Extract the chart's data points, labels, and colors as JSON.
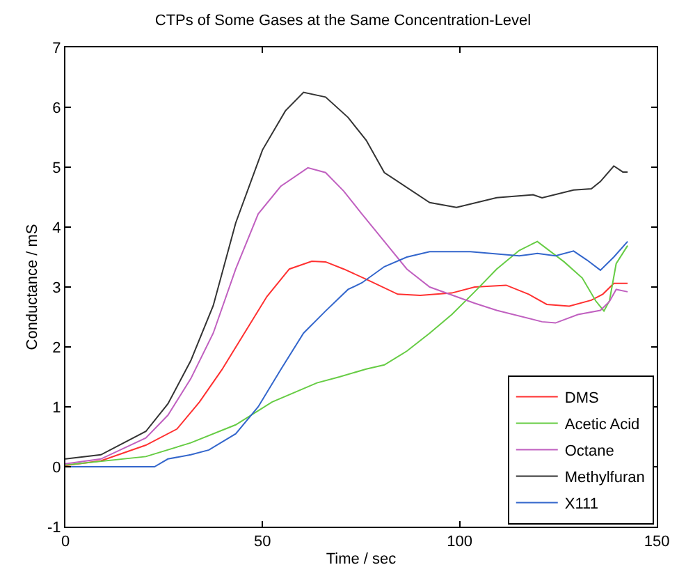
{
  "chart_data": {
    "type": "line",
    "title": "CTPs of Some Gases at the Same Concentration-Level",
    "xlabel": "Time / sec",
    "ylabel": "Conductance / mS",
    "xlim": [
      0,
      150
    ],
    "xticks": [
      0,
      50,
      100,
      150
    ],
    "ylim": [
      -1,
      7
    ],
    "yticks": [
      -1,
      0,
      1,
      2,
      3,
      4,
      5,
      6,
      7
    ],
    "legend": "bottom right",
    "series": [
      {
        "name": "DMS",
        "color": "#ff3030",
        "x": [
          0,
          9,
          20.4,
          28.3,
          34,
          39.7,
          45.4,
          51.1,
          56.8,
          62.5,
          66,
          70.6,
          76.3,
          84.3,
          90,
          98,
          103.8,
          111.8,
          117.5,
          122.1,
          127.8,
          133.4,
          136.3,
          139.1,
          142.6
        ],
        "values": [
          0.02,
          0.1,
          0.36,
          0.63,
          1.08,
          1.62,
          2.23,
          2.84,
          3.3,
          3.43,
          3.42,
          3.3,
          3.13,
          2.88,
          2.86,
          2.9,
          3.0,
          3.03,
          2.88,
          2.71,
          2.68,
          2.78,
          2.88,
          3.06,
          3.06
        ]
      },
      {
        "name": "Acetic Acid",
        "color": "#66cc44",
        "x": [
          0,
          20.4,
          31.8,
          43.2,
          52.4,
          63.8,
          69.5,
          76.3,
          80.9,
          86.6,
          92.4,
          98,
          103.8,
          109.4,
          115.1,
          119.7,
          126.5,
          131.1,
          134.5,
          136.6,
          138,
          139.7,
          142.6
        ],
        "values": [
          0.03,
          0.17,
          0.4,
          0.7,
          1.08,
          1.4,
          1.5,
          1.63,
          1.7,
          1.93,
          2.23,
          2.54,
          2.92,
          3.3,
          3.61,
          3.76,
          3.42,
          3.15,
          2.77,
          2.6,
          2.77,
          3.39,
          3.69
        ]
      },
      {
        "name": "Octane",
        "color": "#c060c0",
        "x": [
          0,
          9,
          20.4,
          26,
          31.8,
          37.5,
          43.2,
          48.9,
          54.6,
          61.5,
          66,
          70.6,
          75.2,
          80.9,
          86.6,
          92.4,
          103.8,
          109.4,
          120.9,
          124.3,
          130,
          135.7,
          138,
          139.7,
          142.6
        ],
        "values": [
          0.05,
          0.13,
          0.48,
          0.86,
          1.47,
          2.23,
          3.3,
          4.22,
          4.68,
          4.99,
          4.91,
          4.6,
          4.22,
          3.76,
          3.3,
          3.0,
          2.73,
          2.61,
          2.42,
          2.4,
          2.54,
          2.61,
          2.76,
          2.96,
          2.92
        ]
      },
      {
        "name": "Methylfuran",
        "color": "#333333",
        "x": [
          0,
          9,
          20.4,
          26,
          31.8,
          37.5,
          43.2,
          50,
          55.8,
          60.4,
          66,
          71.7,
          76.3,
          80.9,
          92.4,
          99.2,
          109.4,
          118.6,
          120.9,
          128.9,
          133.4,
          135.7,
          139.1,
          141.4,
          142.6
        ],
        "values": [
          0.13,
          0.2,
          0.59,
          1.05,
          1.77,
          2.69,
          4.07,
          5.29,
          5.94,
          6.25,
          6.17,
          5.83,
          5.45,
          4.91,
          4.41,
          4.33,
          4.49,
          4.54,
          4.49,
          4.62,
          4.64,
          4.76,
          5.02,
          4.92,
          4.92
        ]
      },
      {
        "name": "X111",
        "color": "#3366cc",
        "x": [
          0,
          22.6,
          26,
          31.8,
          36.4,
          43.2,
          48.9,
          54.6,
          60.4,
          66,
          71.7,
          75.2,
          80.9,
          86.6,
          92.4,
          102.7,
          115.1,
          119.7,
          124.3,
          128.9,
          132.3,
          135.7,
          139.1,
          142.6
        ],
        "values": [
          0,
          0,
          0.13,
          0.2,
          0.28,
          0.55,
          1.0,
          1.62,
          2.23,
          2.6,
          2.96,
          3.07,
          3.34,
          3.5,
          3.59,
          3.59,
          3.52,
          3.56,
          3.52,
          3.6,
          3.45,
          3.28,
          3.5,
          3.76
        ]
      }
    ]
  }
}
